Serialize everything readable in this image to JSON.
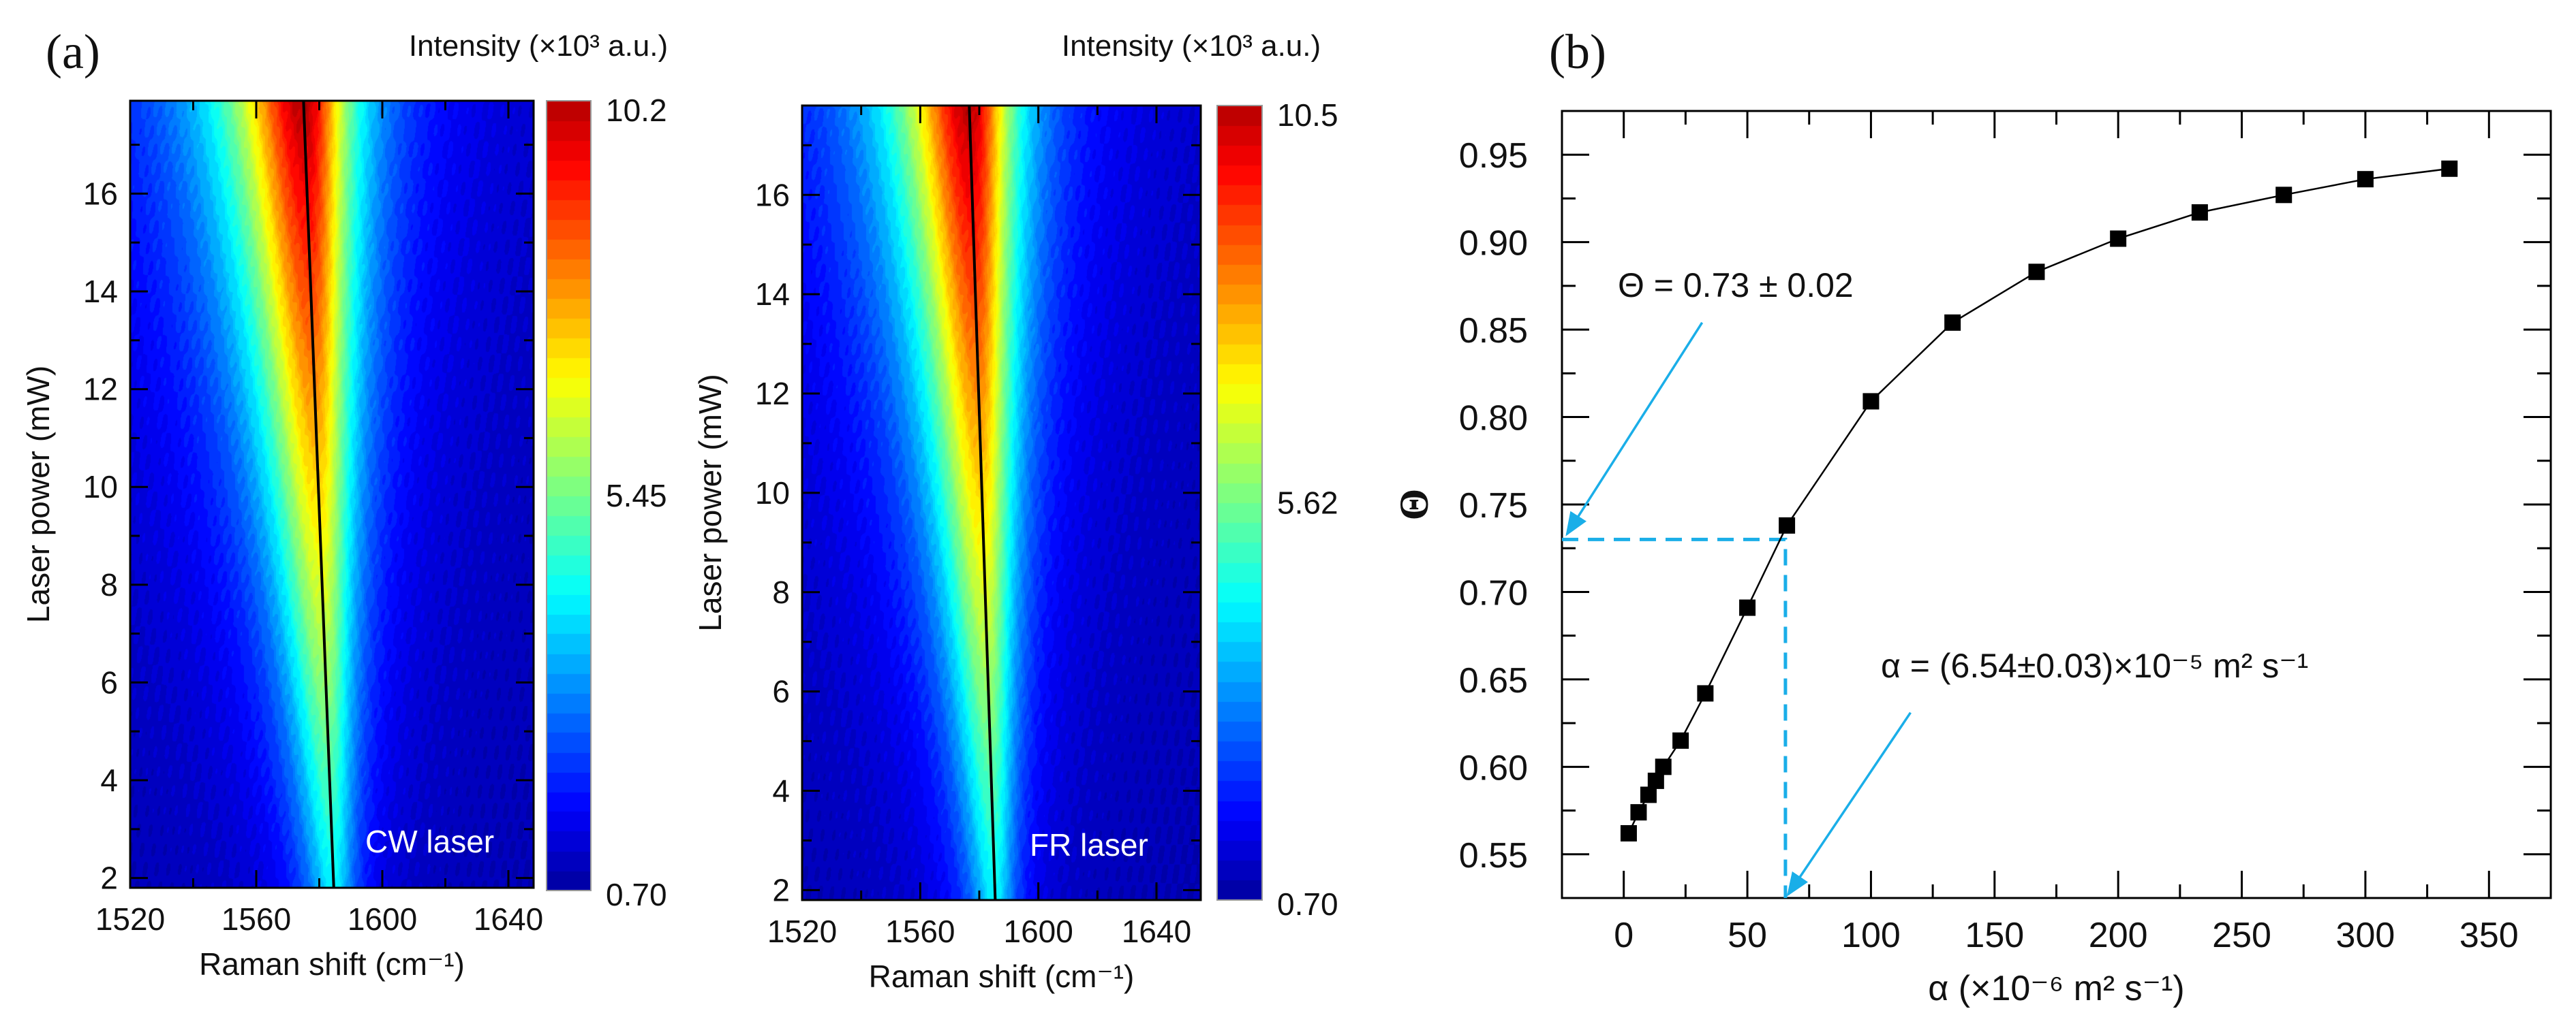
{
  "chart_data": [
    {
      "type": "heatmap",
      "panel_label": "(a)",
      "colorbar_title": "Intensity (×10³ a.u.)",
      "xlabel": "Raman shift (cm⁻¹)",
      "ylabel": "Laser power (mW)",
      "xlim": [
        1520,
        1648
      ],
      "ylim": [
        1.8,
        17.9
      ],
      "xticks": [
        "1520",
        "1560",
        "1600",
        "1640"
      ],
      "yticks": [
        "2",
        "4",
        "6",
        "8",
        "10",
        "12",
        "14",
        "16"
      ],
      "colorbar": {
        "min": 0.7,
        "max": 10.2,
        "labels": [
          "10.2",
          "5.45",
          "0.70"
        ],
        "colormap": "jet"
      },
      "annotation": "CW laser",
      "peak_line": {
        "x": [
          1584.6,
          1575.0
        ],
        "y": [
          1.8,
          17.9
        ]
      }
    },
    {
      "type": "heatmap",
      "colorbar_title": "Intensity (×10³ a.u.)",
      "xlabel": "Raman shift (cm⁻¹)",
      "ylabel": "Laser power (mW)",
      "xlim": [
        1520,
        1655
      ],
      "ylim": [
        1.8,
        17.8
      ],
      "xticks": [
        "1520",
        "1560",
        "1600",
        "1640"
      ],
      "yticks": [
        "2",
        "4",
        "6",
        "8",
        "10",
        "12",
        "14",
        "16"
      ],
      "colorbar": {
        "min": 0.7,
        "max": 10.5,
        "labels": [
          "10.5",
          "5.62",
          "0.70"
        ],
        "colormap": "jet"
      },
      "annotation": "FR laser",
      "peak_line": {
        "x": [
          1585.4,
          1576.6
        ],
        "y": [
          1.8,
          17.8
        ]
      }
    },
    {
      "type": "line",
      "panel_label": "(b)",
      "xlabel": "α (×10⁻⁶ m² s⁻¹)",
      "ylabel": "Θ",
      "xlim": [
        -25,
        375
      ],
      "ylim": [
        0.525,
        0.975
      ],
      "xticks": [
        "0",
        "50",
        "100",
        "150",
        "200",
        "250",
        "300",
        "350"
      ],
      "yticks": [
        "0.55",
        "0.60",
        "0.65",
        "0.70",
        "0.75",
        "0.80",
        "0.85",
        "0.90",
        "0.95"
      ],
      "x": [
        2,
        6,
        10,
        13,
        16,
        23,
        33,
        50,
        66,
        100,
        133,
        167,
        200,
        233,
        267,
        300,
        334
      ],
      "y": [
        0.562,
        0.574,
        0.584,
        0.592,
        0.6,
        0.615,
        0.642,
        0.691,
        0.738,
        0.809,
        0.854,
        0.883,
        0.902,
        0.917,
        0.927,
        0.936,
        0.942
      ],
      "marker": "square",
      "guide": {
        "x": 65.4,
        "y": 0.73,
        "color": "#1aaee8",
        "style": "dashed"
      },
      "annotations": [
        "Θ = 0.73 ± 0.02",
        "α = (6.54±0.03)×10⁻⁵ m² s⁻¹"
      ],
      "arrow_color": "#1aaee8"
    }
  ]
}
